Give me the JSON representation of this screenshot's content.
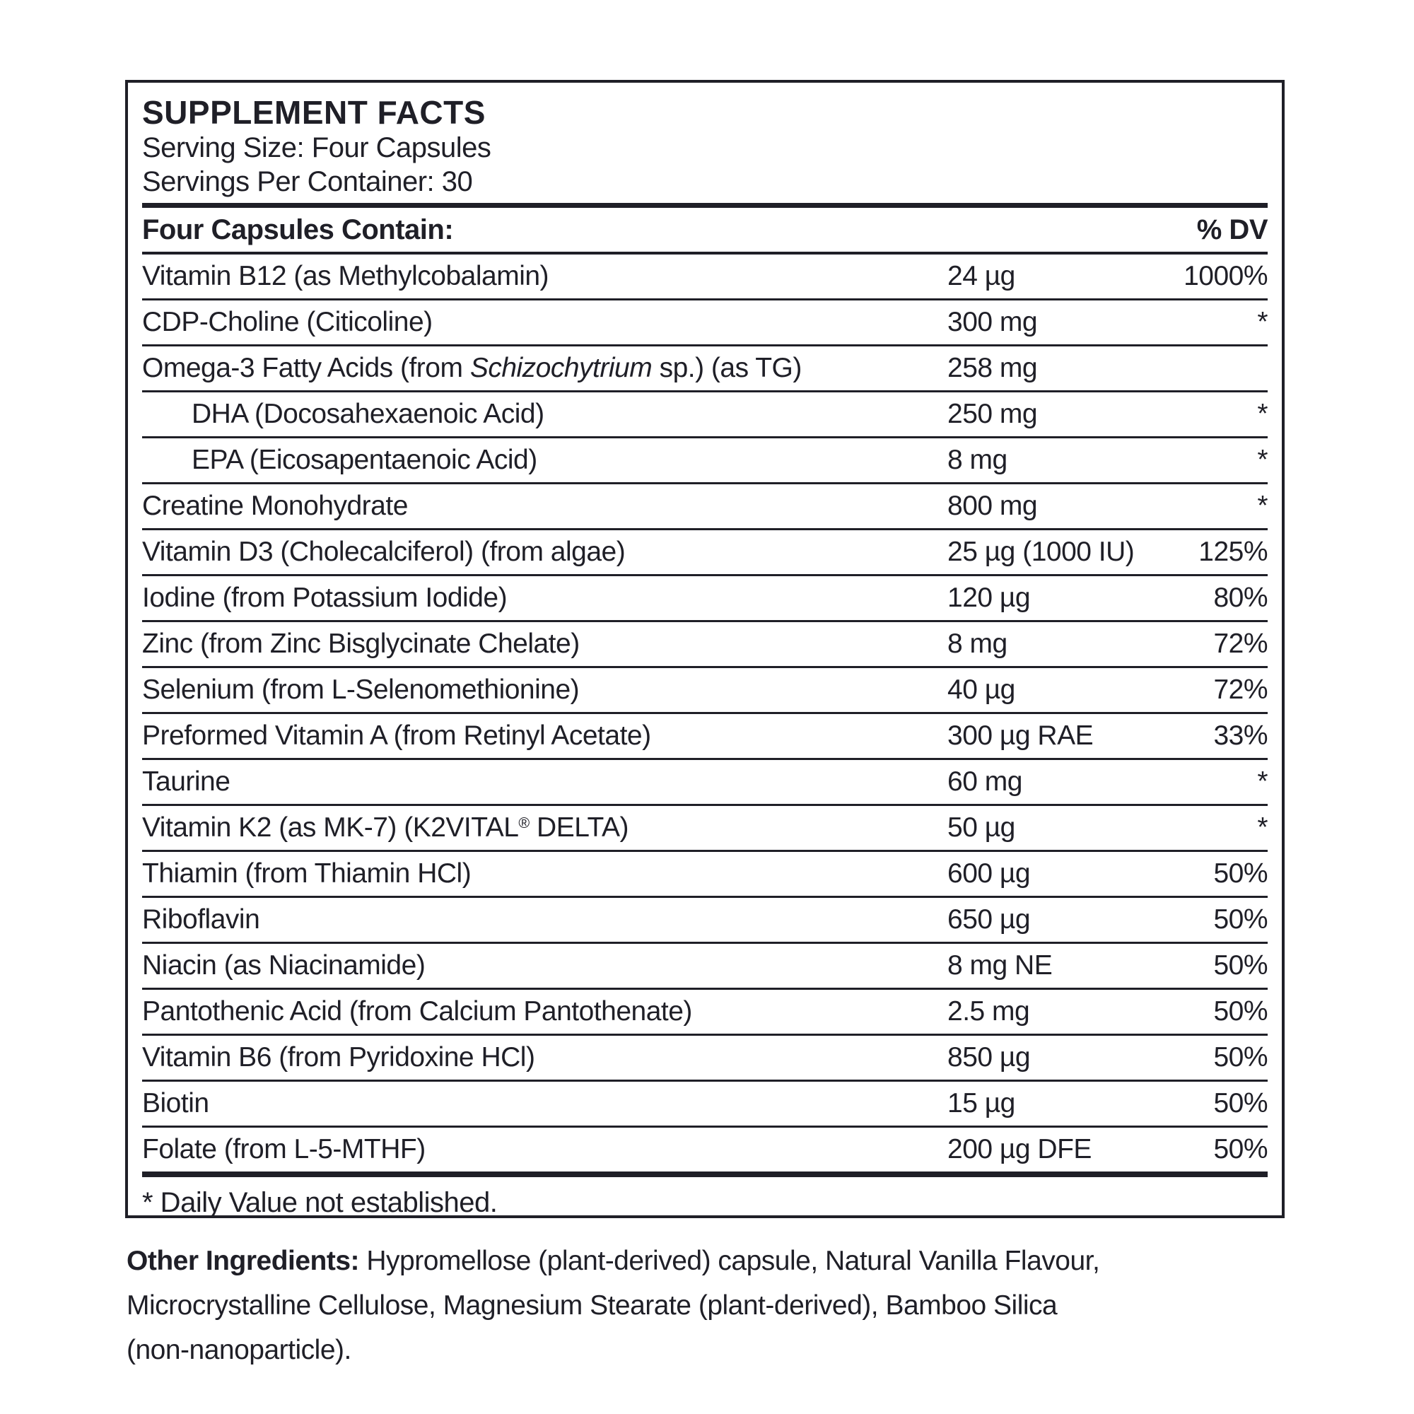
{
  "panel": {
    "title": "SUPPLEMENT FACTS",
    "serving_size": "Serving Size: Four Capsules",
    "servings_per_container": "Servings Per Container: 30",
    "table": {
      "header_left": "Four Capsules Contain:",
      "header_right": "% DV",
      "rows": [
        {
          "name": "Vitamin B12 (as Methylcobalamin)",
          "name_italic": "",
          "indent": false,
          "amount": "24 µg",
          "dv": "1000%"
        },
        {
          "name": "CDP-Choline (Citicoline)",
          "name_italic": "",
          "indent": false,
          "amount": "300 mg",
          "dv": "*"
        },
        {
          "name": "Omega-3 Fatty Acids (from Schizochytrium sp.) (as TG)",
          "name_italic": "Schizochytrium",
          "indent": false,
          "amount": "258 mg",
          "dv": ""
        },
        {
          "name": "DHA (Docosahexaenoic Acid)",
          "name_italic": "",
          "indent": true,
          "amount": "250 mg",
          "dv": "*"
        },
        {
          "name": "EPA (Eicosapentaenoic Acid)",
          "name_italic": "",
          "indent": true,
          "amount": "8 mg",
          "dv": "*"
        },
        {
          "name": "Creatine Monohydrate",
          "name_italic": "",
          "indent": false,
          "amount": "800 mg",
          "dv": "*"
        },
        {
          "name": "Vitamin D3 (Cholecalciferol) (from algae)",
          "name_italic": "",
          "indent": false,
          "amount": "25 µg (1000 IU)",
          "dv": "125%"
        },
        {
          "name": "Iodine (from Potassium Iodide)",
          "name_italic": "",
          "indent": false,
          "amount": "120 µg",
          "dv": "80%"
        },
        {
          "name": "Zinc (from Zinc Bisglycinate Chelate)",
          "name_italic": "",
          "indent": false,
          "amount": "8 mg",
          "dv": "72%"
        },
        {
          "name": "Selenium (from L-Selenomethionine)",
          "name_italic": "",
          "indent": false,
          "amount": "40 µg",
          "dv": "72%"
        },
        {
          "name": "Preformed Vitamin A (from Retinyl Acetate)",
          "name_italic": "",
          "indent": false,
          "amount": "300 µg RAE",
          "dv": "33%"
        },
        {
          "name": "Taurine",
          "name_italic": "",
          "indent": false,
          "amount": "60 mg",
          "dv": "*"
        },
        {
          "name": "Vitamin K2 (as MK-7) (K2VITAL® DELTA)",
          "name_italic": "",
          "indent": false,
          "amount": "50 µg",
          "dv": "*"
        },
        {
          "name": "Thiamin (from Thiamin HCl)",
          "name_italic": "",
          "indent": false,
          "amount": "600 µg",
          "dv": "50%"
        },
        {
          "name": "Riboflavin",
          "name_italic": "",
          "indent": false,
          "amount": "650 µg",
          "dv": "50%"
        },
        {
          "name": "Niacin (as Niacinamide)",
          "name_italic": "",
          "indent": false,
          "amount": "8 mg NE",
          "dv": "50%"
        },
        {
          "name": "Pantothenic Acid (from Calcium Pantothenate)",
          "name_italic": "",
          "indent": false,
          "amount": "2.5 mg",
          "dv": "50%"
        },
        {
          "name": "Vitamin B6 (from Pyridoxine HCl)",
          "name_italic": "",
          "indent": false,
          "amount": "850 µg",
          "dv": "50%"
        },
        {
          "name": "Biotin",
          "name_italic": "",
          "indent": false,
          "amount": "15 µg",
          "dv": "50%"
        },
        {
          "name": "Folate (from L-5-MTHF)",
          "name_italic": "",
          "indent": false,
          "amount": "200 µg DFE",
          "dv": "50%"
        }
      ],
      "footnote": "* Daily Value not established."
    }
  },
  "other_ingredients": {
    "label": "Other Ingredients:",
    "line1_rest": " Hypromellose (plant-derived) capsule, Natural Vanilla Flavour,",
    "line2": "Microcrystalline Cellulose, Magnesium Stearate (plant-derived), Bamboo Silica",
    "line3": "(non-nanoparticle)."
  },
  "colors": {
    "text": "#1f1f27",
    "background": "#ffffff"
  }
}
